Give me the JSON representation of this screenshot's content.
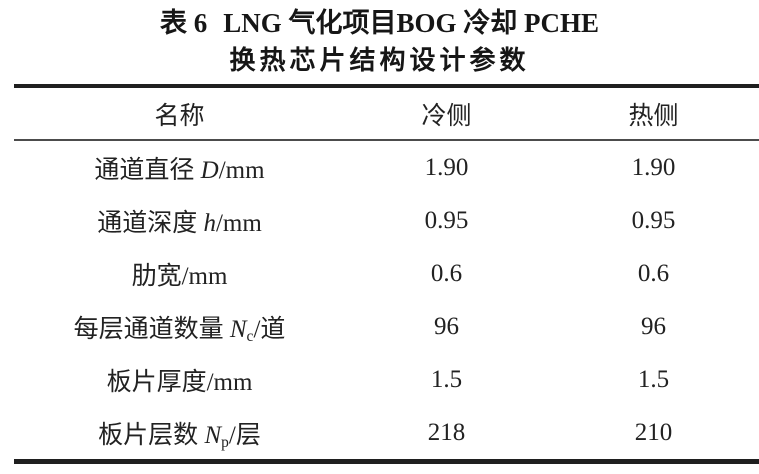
{
  "title": {
    "line1_index": "表 6",
    "line1_text": "LNG 气化项目BOG 冷却 PCHE",
    "line2": "换热芯片结构设计参数"
  },
  "table": {
    "header": {
      "name": "名称",
      "cold": "冷侧",
      "hot": "热侧"
    },
    "rows": [
      {
        "pre": "通道直径 ",
        "var": "D",
        "sub": "",
        "suf": "/mm",
        "cold": "1.90",
        "hot": "1.90"
      },
      {
        "pre": "通道深度 ",
        "var": "h",
        "sub": "",
        "suf": "/mm",
        "cold": "0.95",
        "hot": "0.95"
      },
      {
        "pre": "肋宽",
        "var": "",
        "sub": "",
        "suf": "/mm",
        "cold": "0.6",
        "hot": "0.6"
      },
      {
        "pre": "每层通道数量 ",
        "var": "N",
        "sub": "c",
        "suf": "/道",
        "cold": "96",
        "hot": "96"
      },
      {
        "pre": "板片厚度",
        "var": "",
        "sub": "",
        "suf": "/mm",
        "cold": "1.5",
        "hot": "1.5"
      },
      {
        "pre": "板片层数 ",
        "var": "N",
        "sub": "p",
        "suf": "/层",
        "cold": "218",
        "hot": "210"
      }
    ]
  },
  "colors": {
    "background": "#ffffff",
    "text": "#1c1c1c",
    "rule_thick": "#1f1f1f",
    "rule_thin": "#4c4c4c"
  }
}
